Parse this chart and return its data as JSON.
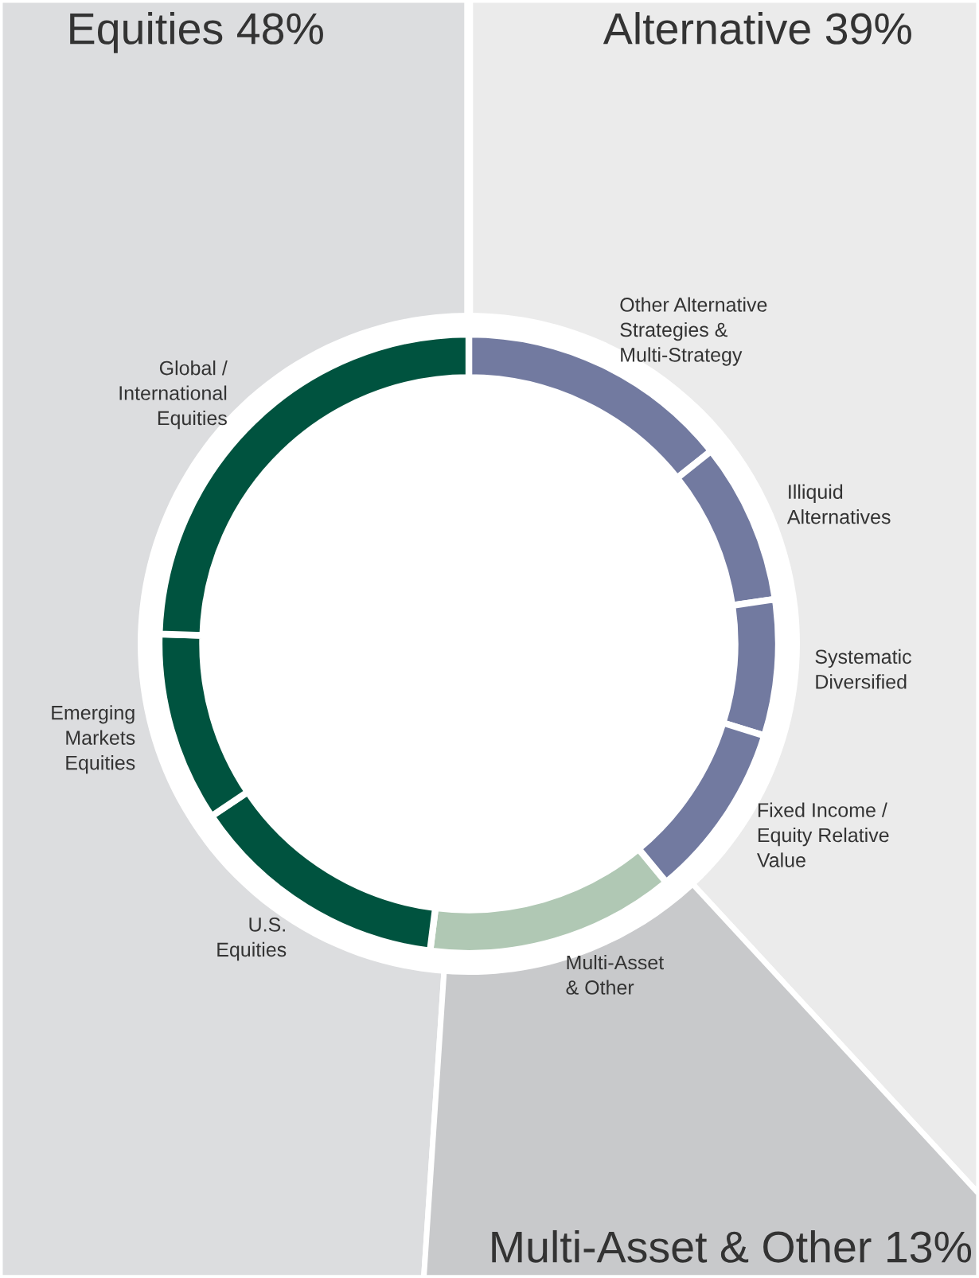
{
  "chart_data": {
    "type": "donut",
    "categories": [
      "Other Alternative\nStrategies &\nMulti-Strategy",
      "Illiquid\nAlternatives",
      "Systematic\nDiversified",
      "Fixed Income /\nEquity Relative\nValue",
      "Multi-Asset\n& Other",
      "U.S.\nEquities",
      "Emerging\nMarkets\nEquities",
      "Global /\nInternational\nEquities"
    ],
    "values": [
      14.3,
      8.4,
      7.1,
      9.2,
      13,
      13.6,
      9.9,
      24.5
    ],
    "colors": [
      "#727aa0",
      "#727aa0",
      "#727aa0",
      "#727aa0",
      "#b0c8b4",
      "#00533f",
      "#00533f",
      "#00533f"
    ],
    "annotations": [
      "Equities 48%",
      "Alternative 39%",
      "Multi-Asset & Other 13%"
    ],
    "legend": false
  }
}
